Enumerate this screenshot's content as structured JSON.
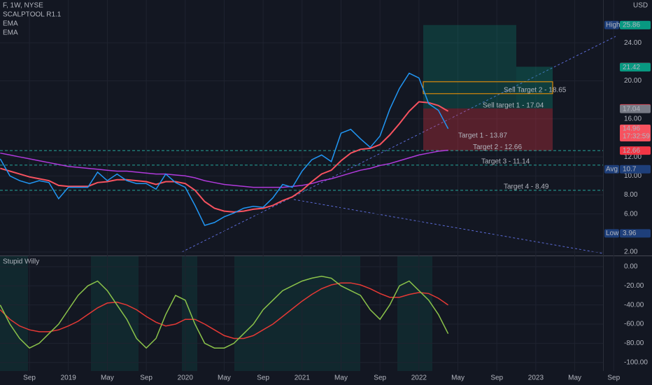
{
  "header": {
    "symbol": "F, 1W, NYSE",
    "indicator": "SCALPTOOL R1.1",
    "currency": "USD"
  },
  "chart_data": [
    {
      "type": "line",
      "categories": [
        null,
        null,
        null,
        "Sep",
        null,
        null,
        null,
        "2019",
        null,
        null,
        null,
        "May",
        null,
        null,
        null,
        "Sep",
        null,
        null,
        null,
        "2020",
        null,
        null,
        null,
        "May",
        null,
        null,
        null,
        "Sep",
        null,
        null,
        null,
        "2021",
        null,
        null,
        null,
        "May",
        null,
        null,
        null,
        "Sep",
        null,
        null,
        null,
        "2022",
        null,
        null,
        null,
        "May",
        null,
        null,
        null,
        "Sep",
        null,
        null,
        null,
        "2023",
        null,
        null,
        null,
        "May",
        null,
        null,
        null,
        "Sep"
      ],
      "series": [
        {
          "color": "#2196f3",
          "values": [
            11.8,
            10.0,
            9.5,
            9.2,
            9.5,
            9.3,
            7.6,
            8.8,
            8.8,
            8.8,
            10.4,
            9.5,
            10.2,
            9.5,
            9.2,
            9.2,
            8.6,
            10.2,
            9.3,
            8.8,
            6.9,
            4.8,
            5.1,
            5.7,
            6.1,
            6.6,
            6.8,
            6.7,
            7.7,
            9.1,
            8.8,
            10.5,
            11.7,
            12.2,
            11.5,
            14.5,
            14.9,
            13.9,
            13.0,
            14.2,
            17.0,
            19.2,
            20.8,
            20.3,
            17.6,
            16.9,
            14.96,
            null,
            null,
            null,
            null,
            null,
            null,
            null,
            null,
            null,
            null,
            null,
            null,
            null,
            null,
            null,
            null,
            null
          ]
        },
        {
          "name": "EMA",
          "color": "#f7525f",
          "values": [
            10.8,
            10.5,
            10.2,
            9.9,
            9.7,
            9.5,
            9.0,
            8.9,
            8.9,
            8.9,
            9.3,
            9.4,
            9.6,
            9.6,
            9.5,
            9.4,
            9.1,
            9.4,
            9.4,
            9.2,
            8.5,
            7.3,
            6.6,
            6.3,
            6.2,
            6.3,
            6.5,
            6.6,
            6.9,
            7.4,
            7.8,
            8.5,
            9.4,
            10.2,
            10.6,
            11.6,
            12.4,
            12.8,
            12.9,
            13.3,
            14.3,
            15.5,
            16.8,
            17.8,
            17.7,
            17.4,
            16.8,
            null,
            null,
            null,
            null,
            null,
            null,
            null,
            null,
            null,
            null,
            null,
            null,
            null,
            null,
            null,
            null,
            null
          ]
        },
        {
          "name": "EMA",
          "color": "#b03adb",
          "values": [
            12.4,
            12.2,
            12.0,
            11.8,
            11.6,
            11.4,
            11.2,
            11.0,
            10.9,
            10.8,
            10.7,
            10.6,
            10.5,
            10.5,
            10.4,
            10.3,
            10.2,
            10.2,
            10.1,
            10.0,
            9.8,
            9.5,
            9.3,
            9.1,
            9.0,
            8.9,
            8.8,
            8.8,
            8.8,
            8.8,
            8.9,
            9.0,
            9.2,
            9.5,
            9.7,
            10.0,
            10.3,
            10.6,
            10.8,
            11.1,
            11.3,
            11.6,
            11.9,
            12.2,
            12.4,
            12.6,
            12.7,
            null,
            null,
            null,
            null,
            null,
            null,
            null,
            null,
            null,
            null,
            null,
            null,
            null,
            null,
            null,
            null,
            null
          ]
        }
      ],
      "ylim": [
        2,
        28.5
      ],
      "yticks": [
        {
          "value": 2,
          "label": "2.00"
        },
        {
          "value": 6,
          "label": "6.00"
        },
        {
          "value": 8,
          "label": "8.00"
        },
        {
          "value": 10,
          "label": "10.00"
        },
        {
          "value": 12,
          "label": "12.00"
        },
        {
          "value": 16,
          "label": "16.00"
        },
        {
          "value": 20,
          "label": "20.00"
        },
        {
          "value": 24,
          "label": "24.00"
        }
      ],
      "grid": true,
      "price_tags": [
        {
          "name": "High",
          "value": 25.87,
          "color": "#1e3f7a"
        },
        {
          "value": 25.86,
          "color": "#089981"
        },
        {
          "value": 21.48,
          "color": "#4a4d57"
        },
        {
          "value": 21.42,
          "color": "#089981"
        },
        {
          "value": 17.1,
          "color": "#f23645"
        },
        {
          "value": 17.04,
          "color": "#787b86"
        },
        {
          "value": 14.96,
          "color": "#f7525f",
          "countdown": "17:32:59"
        },
        {
          "value": 12.66,
          "color": "#f23645"
        },
        {
          "name": "Avg",
          "value": 10.7,
          "color": "#1e3f7a"
        },
        {
          "name": "Low",
          "value": 3.96,
          "color": "#1e3f7a"
        }
      ],
      "targets": [
        {
          "label": "Sell Target 2 - 18.65",
          "value": 18.65,
          "color": "#2962ff"
        },
        {
          "label": "Sell target 1 - 17.04",
          "value": 17.04,
          "color": "#2962ff"
        },
        {
          "label": "Target 1 - 13.87",
          "value": 13.87,
          "color": "#4caf50"
        },
        {
          "label": "Target 2 - 12.66",
          "value": 12.66,
          "color": "#4caf50"
        },
        {
          "label": "Target 3 - 11.14",
          "value": 11.14,
          "color": "#4caf50"
        },
        {
          "label": "Target 4 - 8.49",
          "value": 8.49,
          "color": "#4caf50"
        }
      ]
    },
    {
      "type": "line",
      "title": "Stupid Willy",
      "series": [
        {
          "color": "#8bc34a",
          "values": [
            -40,
            -60,
            -75,
            -85,
            -80,
            -70,
            -60,
            -45,
            -30,
            -20,
            -15,
            -25,
            -40,
            -55,
            -75,
            -85,
            -75,
            -50,
            -30,
            -35,
            -60,
            -80,
            -85,
            -85,
            -80,
            -70,
            -60,
            -45,
            -35,
            -25,
            -20,
            -15,
            -12,
            -10,
            -12,
            -20,
            -25,
            -30,
            -45,
            -55,
            -40,
            -20,
            -15,
            -25,
            -35,
            -50,
            -70,
            null,
            null,
            null,
            null,
            null,
            null,
            null,
            null,
            null,
            null,
            null,
            null,
            null,
            null,
            null,
            null,
            null
          ]
        },
        {
          "color": "#e53935",
          "values": [
            -45,
            -55,
            -62,
            -66,
            -68,
            -68,
            -66,
            -62,
            -57,
            -50,
            -43,
            -38,
            -37,
            -40,
            -45,
            -52,
            -58,
            -62,
            -60,
            -55,
            -55,
            -60,
            -66,
            -72,
            -75,
            -75,
            -72,
            -66,
            -60,
            -52,
            -44,
            -36,
            -29,
            -23,
            -19,
            -17,
            -17,
            -19,
            -23,
            -28,
            -32,
            -32,
            -29,
            -27,
            -28,
            -33,
            -40,
            null,
            null,
            null,
            null,
            null,
            null,
            null,
            null,
            null,
            null,
            null,
            null,
            null,
            null,
            null,
            null,
            null
          ]
        }
      ],
      "ylim": [
        -109,
        9.5
      ],
      "yticks": [
        {
          "value": 0,
          "label": "0.00"
        },
        {
          "value": -20,
          "label": "-20.00"
        },
        {
          "value": -40,
          "label": "-40.00"
        },
        {
          "value": -60,
          "label": "-60.00"
        },
        {
          "value": -80,
          "label": "-80.00"
        },
        {
          "value": -100,
          "label": "-100.00"
        }
      ],
      "grid": true
    }
  ]
}
